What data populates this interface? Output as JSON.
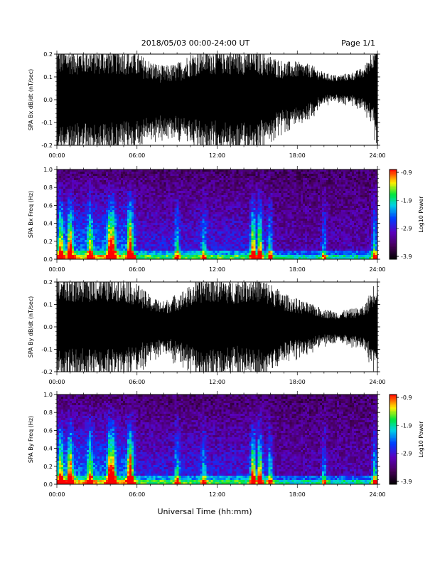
{
  "header": {
    "title": "2018/05/03  00:00-24:00 UT",
    "page": "Page 1/1"
  },
  "x_axis": {
    "label": "Universal Time (hh:mm)",
    "ticks": [
      "00:00",
      "06:00",
      "12:00",
      "18:00",
      "24:00"
    ]
  },
  "colorbar": {
    "label": "Log10 Power",
    "ticks": [
      "-0.9",
      "-1.9",
      "-2.9",
      "-3.9"
    ],
    "range": [
      -3.9,
      -0.9
    ]
  },
  "chart_data": [
    {
      "type": "line",
      "name": "bx-waveform",
      "ylabel": "SPA Bx dB/dt (nT/sec)",
      "xlim": [
        0,
        24
      ],
      "ylim": [
        -0.2,
        0.2
      ],
      "yticks": [
        "0.2",
        "0.1",
        "0.0",
        "-0.1",
        "-0.2"
      ],
      "envelope_hours": [
        0,
        1,
        2,
        3,
        4,
        5,
        6,
        7,
        8,
        9,
        10,
        11,
        12,
        13,
        14,
        15,
        16,
        17,
        18,
        19,
        20,
        21,
        22,
        23,
        24
      ],
      "envelope_amplitude": [
        0.2,
        0.2,
        0.2,
        0.2,
        0.2,
        0.2,
        0.18,
        0.15,
        0.13,
        0.14,
        0.18,
        0.2,
        0.2,
        0.2,
        0.2,
        0.2,
        0.16,
        0.13,
        0.12,
        0.1,
        0.06,
        0.05,
        0.06,
        0.08,
        0.2
      ],
      "envelope_center": [
        0,
        0,
        0,
        0,
        0,
        0,
        0,
        0,
        0,
        0,
        0,
        0,
        0,
        0,
        0,
        0,
        0.01,
        0.02,
        0.03,
        0.04,
        0.05,
        0.05,
        0.05,
        0.05,
        0.05
      ]
    },
    {
      "type": "heatmap",
      "name": "bx-spectrogram",
      "ylabel": "SPA Bx Freq (Hz)",
      "xlim": [
        0,
        24
      ],
      "ylim": [
        0,
        1.0
      ],
      "yticks": [
        "1.0",
        "0.8",
        "0.6",
        "0.4",
        "0.2",
        "0.0"
      ],
      "burst_hours": [
        0.3,
        1.0,
        2.5,
        4.0,
        4.2,
        5.5,
        9.0,
        11.0,
        14.7,
        15.2,
        16.0,
        20.0,
        23.8
      ],
      "burst_strength": [
        0.6,
        0.7,
        0.5,
        0.8,
        0.7,
        0.8,
        0.4,
        0.35,
        0.75,
        0.7,
        0.45,
        0.35,
        0.5
      ]
    },
    {
      "type": "line",
      "name": "by-waveform",
      "ylabel": "SPA By dB/dt (nT/sec)",
      "xlim": [
        0,
        24
      ],
      "ylim": [
        -0.2,
        0.2
      ],
      "yticks": [
        "0.2",
        "0.1",
        "0.0",
        "-0.1",
        "-0.2"
      ],
      "envelope_hours": [
        0,
        1,
        2,
        3,
        4,
        5,
        6,
        7,
        8,
        9,
        10,
        11,
        12,
        13,
        14,
        15,
        16,
        17,
        18,
        19,
        20,
        21,
        22,
        23,
        24
      ],
      "envelope_amplitude": [
        0.2,
        0.2,
        0.2,
        0.2,
        0.2,
        0.2,
        0.17,
        0.12,
        0.1,
        0.13,
        0.16,
        0.2,
        0.2,
        0.18,
        0.2,
        0.2,
        0.17,
        0.13,
        0.11,
        0.09,
        0.07,
        0.06,
        0.07,
        0.08,
        0.2
      ],
      "envelope_center": [
        0,
        0,
        0,
        0,
        0,
        0,
        0,
        0,
        0,
        0,
        0,
        0,
        0,
        0,
        0,
        0,
        0,
        0,
        0,
        0,
        0,
        0,
        0,
        0,
        0
      ]
    },
    {
      "type": "heatmap",
      "name": "by-spectrogram",
      "ylabel": "SPA By Freq (Hz)",
      "xlim": [
        0,
        24
      ],
      "ylim": [
        0,
        1.0
      ],
      "yticks": [
        "1.0",
        "0.8",
        "0.6",
        "0.4",
        "0.2",
        "0.0"
      ],
      "burst_hours": [
        0.3,
        1.0,
        2.5,
        4.0,
        4.2,
        5.5,
        9.0,
        11.0,
        14.7,
        15.2,
        16.0,
        20.0,
        23.8
      ],
      "burst_strength": [
        0.6,
        0.7,
        0.5,
        0.8,
        0.7,
        0.85,
        0.4,
        0.35,
        0.75,
        0.7,
        0.45,
        0.35,
        0.5
      ]
    }
  ]
}
